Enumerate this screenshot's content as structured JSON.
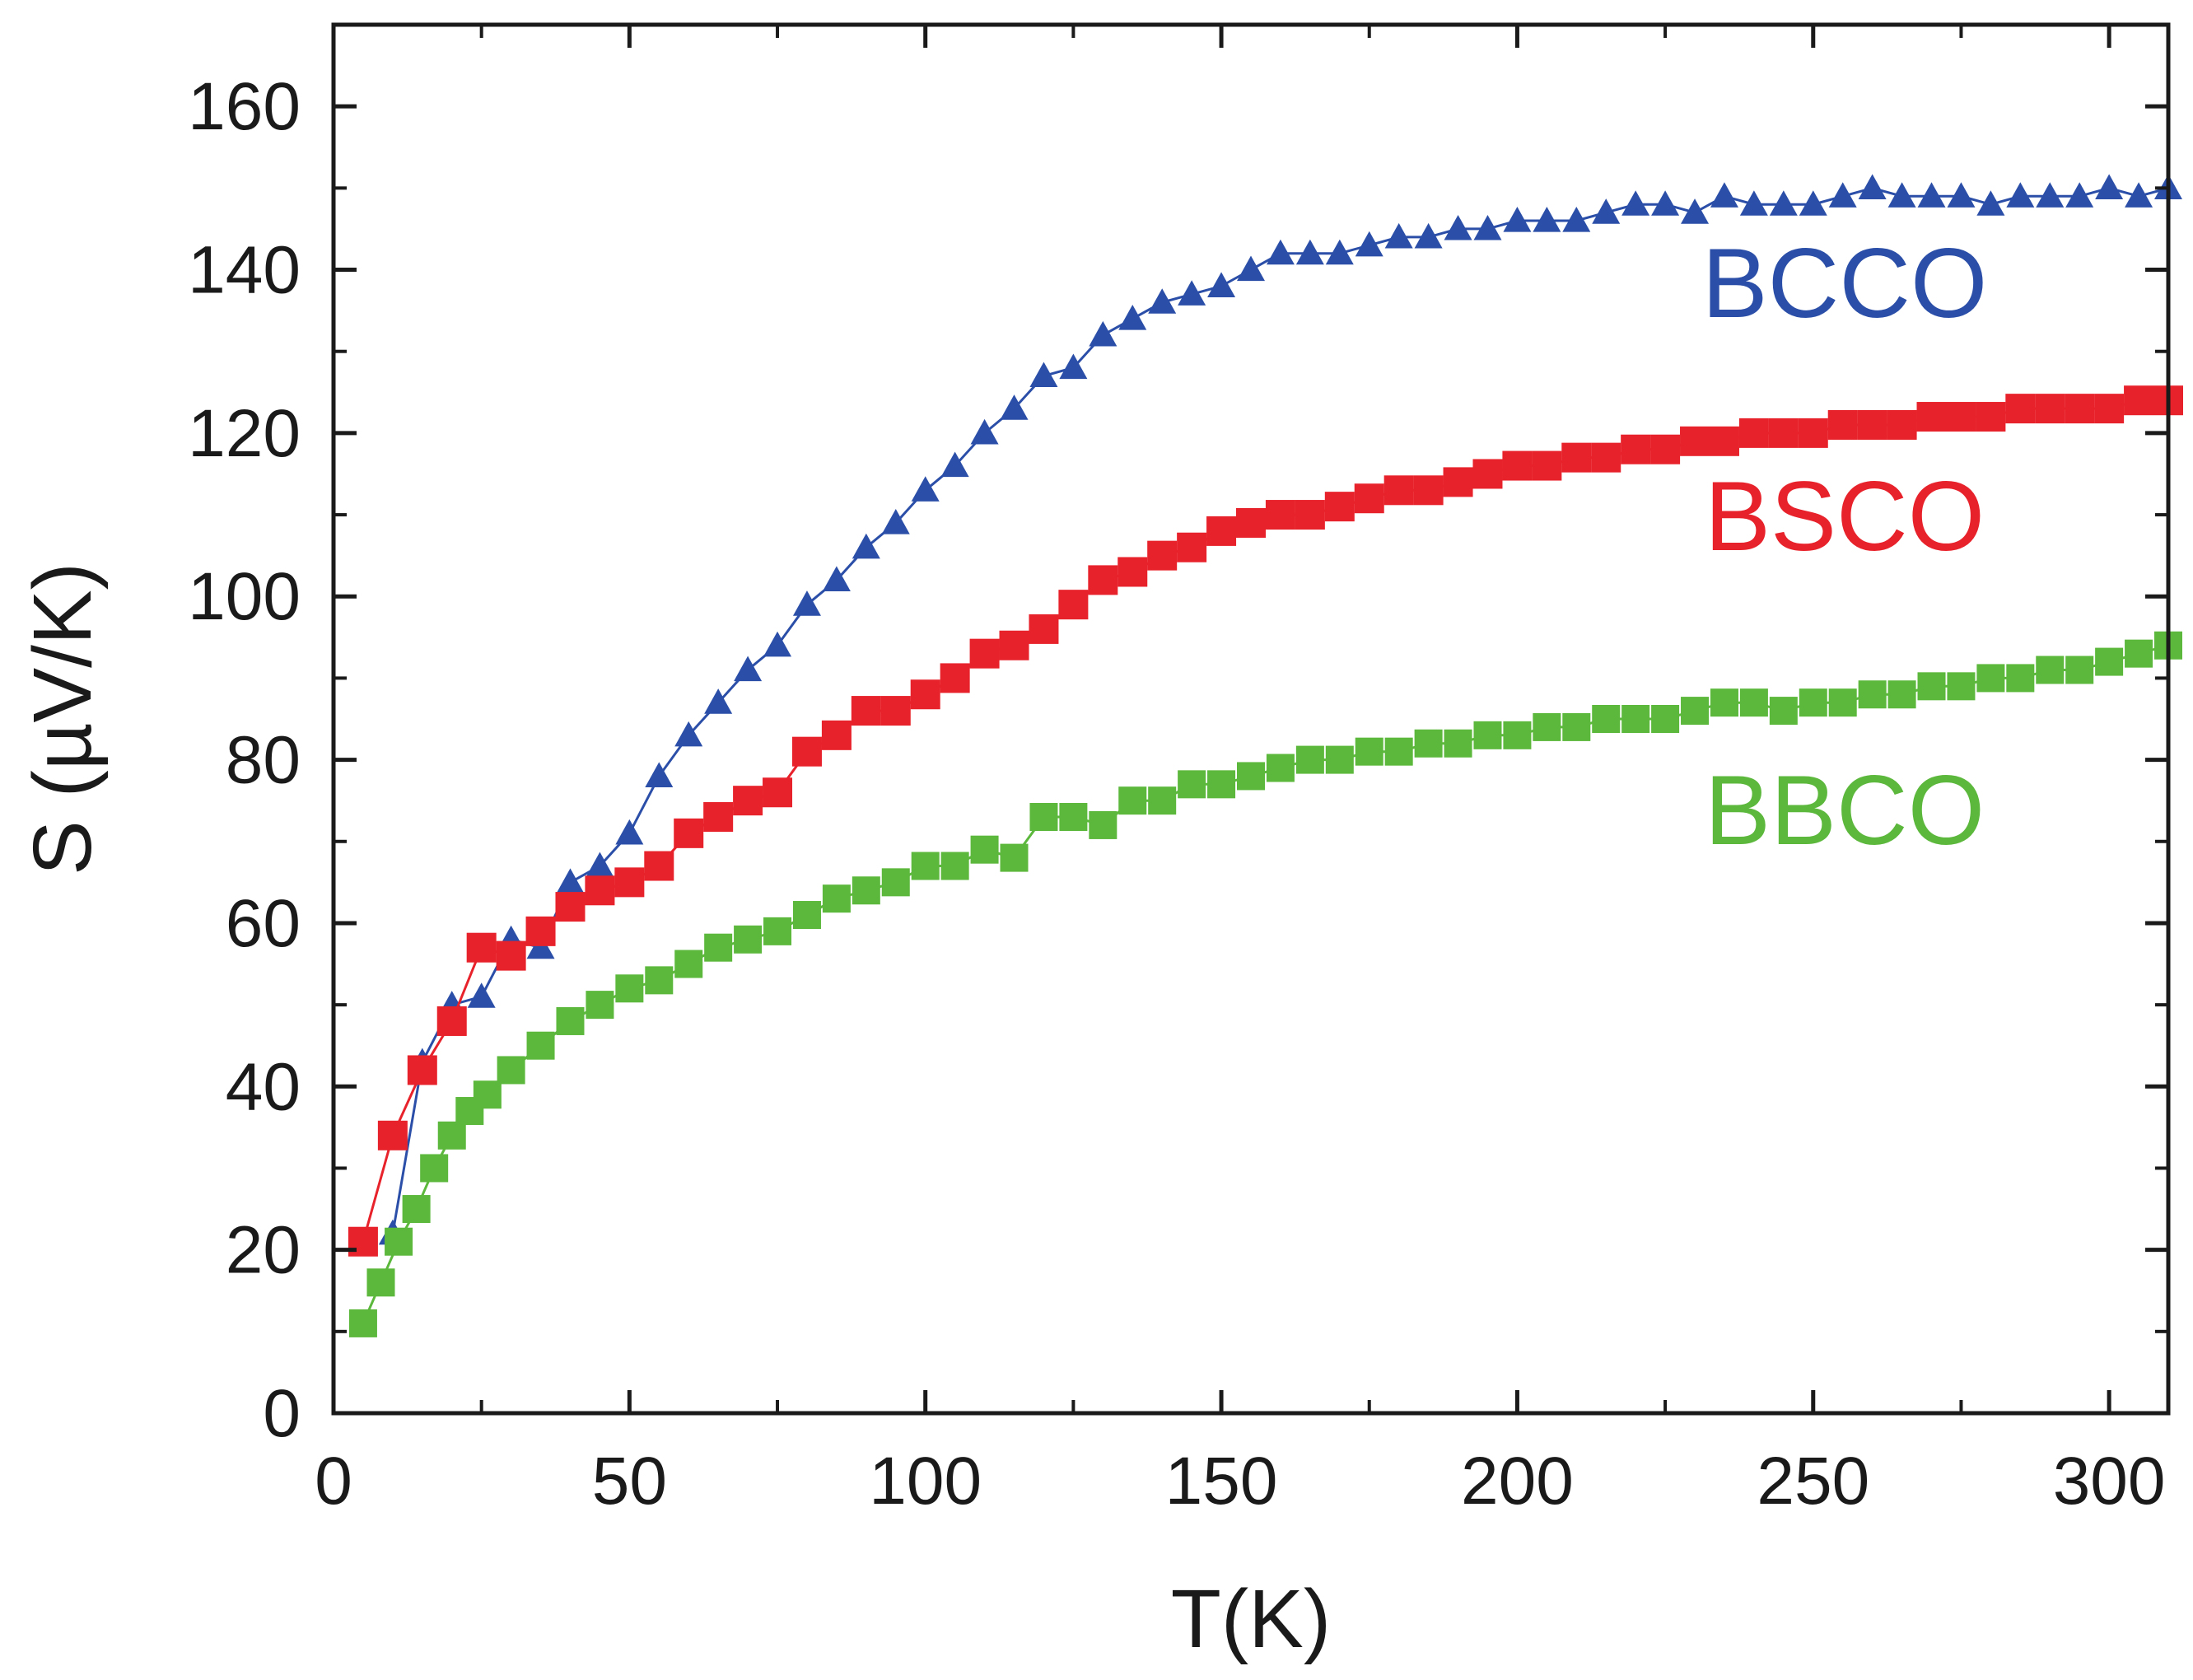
{
  "chart_data": {
    "type": "scatter",
    "title": "",
    "xlabel": "T(K)",
    "ylabel": "S (µV/K)",
    "xlim": [
      0,
      310
    ],
    "ylim": [
      0,
      170
    ],
    "xticks": [
      0,
      50,
      100,
      150,
      200,
      250,
      300
    ],
    "yticks": [
      0,
      20,
      40,
      60,
      80,
      100,
      120,
      140,
      160
    ],
    "xtick_labels": [
      "0",
      "50",
      "100",
      "150",
      "200",
      "250",
      "300"
    ],
    "ytick_labels": [
      "0",
      "20",
      "40",
      "60",
      "80",
      "100",
      "120",
      "140",
      "160"
    ],
    "grid": false,
    "series": [
      {
        "name": "BCCO",
        "color": "#2b4fa8",
        "marker": "triangle",
        "x": [
          10,
          15,
          20,
          25,
          30,
          35,
          40,
          45,
          50,
          55,
          60,
          65,
          70,
          75,
          80,
          85,
          90,
          95,
          100,
          105,
          110,
          115,
          120,
          125,
          130,
          135,
          140,
          145,
          150,
          155,
          160,
          165,
          170,
          175,
          180,
          185,
          190,
          195,
          200,
          205,
          210,
          215,
          220,
          225,
          230,
          235,
          240,
          245,
          250,
          255,
          260,
          265,
          270,
          275,
          280,
          285,
          290,
          295,
          300,
          305,
          310
        ],
        "y": [
          22,
          43,
          50,
          51,
          58,
          57,
          65,
          67,
          71,
          78,
          83,
          87,
          91,
          94,
          99,
          102,
          106,
          109,
          113,
          116,
          120,
          123,
          127,
          128,
          132,
          134,
          136,
          137,
          138,
          140,
          142,
          142,
          142,
          143,
          144,
          144,
          145,
          145,
          146,
          146,
          146,
          147,
          148,
          148,
          147,
          149,
          148,
          148,
          148,
          149,
          150,
          149,
          149,
          149,
          148,
          149,
          149,
          149,
          150,
          149,
          150
        ]
      },
      {
        "name": "BSCO",
        "color": "#e8222b",
        "marker": "square",
        "x": [
          5,
          10,
          15,
          20,
          25,
          30,
          35,
          40,
          45,
          50,
          55,
          60,
          65,
          70,
          75,
          80,
          85,
          90,
          95,
          100,
          105,
          110,
          115,
          120,
          125,
          130,
          135,
          140,
          145,
          150,
          155,
          160,
          165,
          170,
          175,
          180,
          185,
          190,
          195,
          200,
          205,
          210,
          215,
          220,
          225,
          230,
          235,
          240,
          245,
          250,
          255,
          260,
          265,
          270,
          275,
          280,
          285,
          290,
          295,
          300,
          305,
          310
        ],
        "y": [
          21,
          34,
          42,
          48,
          57,
          56,
          59,
          62,
          64,
          65,
          67,
          71,
          73,
          75,
          76,
          81,
          83,
          86,
          86,
          88,
          90,
          93,
          94,
          96,
          99,
          102,
          103,
          105,
          106,
          108,
          109,
          110,
          110,
          111,
          112,
          113,
          113,
          114,
          115,
          116,
          116,
          117,
          117,
          118,
          118,
          119,
          119,
          120,
          120,
          120,
          121,
          121,
          121,
          122,
          122,
          122,
          123,
          123,
          123,
          123,
          124,
          124
        ]
      },
      {
        "name": "BBCO",
        "color": "#5cb83c",
        "marker": "square",
        "x": [
          5,
          8,
          11,
          14,
          17,
          20,
          23,
          26,
          30,
          35,
          40,
          45,
          50,
          55,
          60,
          65,
          70,
          75,
          80,
          85,
          90,
          95,
          100,
          105,
          110,
          115,
          120,
          125,
          130,
          135,
          140,
          145,
          150,
          155,
          160,
          165,
          170,
          175,
          180,
          185,
          190,
          195,
          200,
          205,
          210,
          215,
          220,
          225,
          230,
          235,
          240,
          245,
          250,
          255,
          260,
          265,
          270,
          275,
          280,
          285,
          290,
          295,
          300,
          305,
          310
        ],
        "y": [
          11,
          16,
          21,
          25,
          30,
          34,
          37,
          39,
          42,
          45,
          48,
          50,
          52,
          53,
          55,
          57,
          58,
          59,
          61,
          63,
          64,
          65,
          67,
          67,
          69,
          68,
          73,
          73,
          72,
          75,
          75,
          77,
          77,
          78,
          79,
          80,
          80,
          81,
          81,
          82,
          82,
          83,
          83,
          84,
          84,
          85,
          85,
          85,
          86,
          87,
          87,
          86,
          87,
          87,
          88,
          88,
          89,
          89,
          90,
          90,
          91,
          91,
          92,
          93,
          94
        ]
      }
    ]
  }
}
